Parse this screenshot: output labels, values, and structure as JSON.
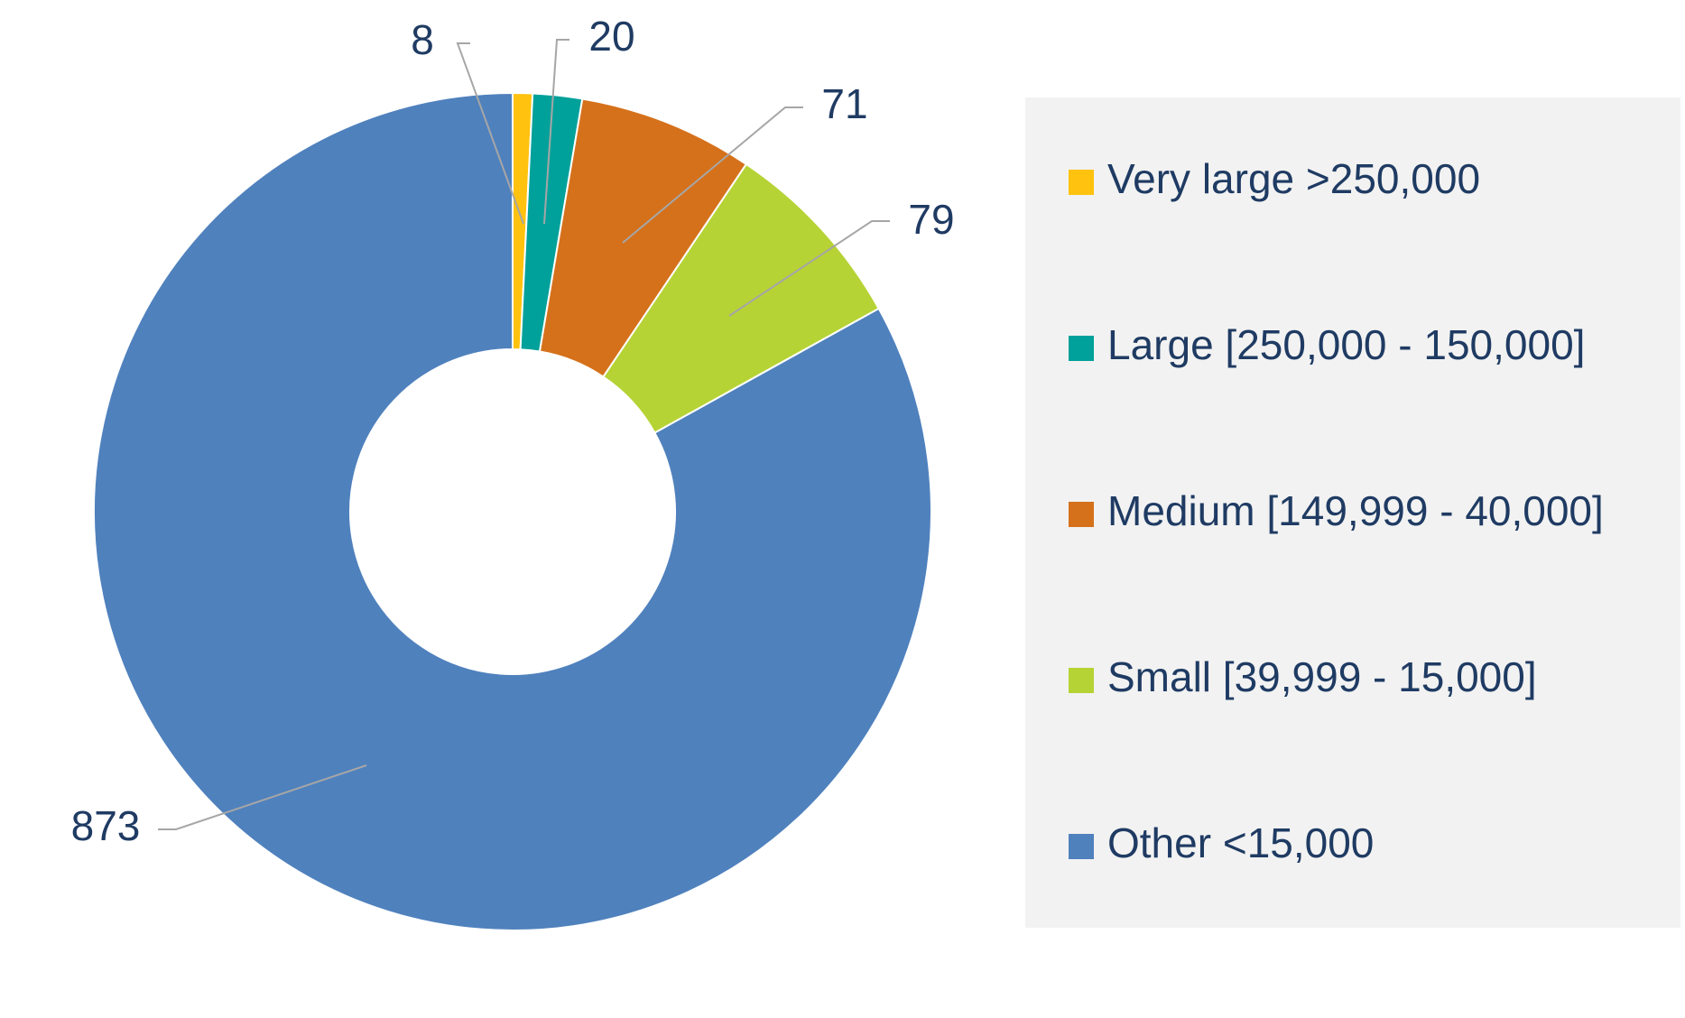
{
  "chart_data": {
    "type": "pie",
    "variant": "donut",
    "categories": [
      "Very large >250,000",
      "Large [250,000 - 150,000]",
      "Medium [149,999 - 40,000]",
      "Small [39,999 - 15,000]",
      "Other <15,000"
    ],
    "values": [
      8,
      20,
      71,
      79,
      873
    ],
    "data_labels": [
      "8",
      "20",
      "71",
      "79",
      "873"
    ],
    "colors": [
      "#FFC20E",
      "#00A19A",
      "#D5711B",
      "#B5D334",
      "#4F81BD"
    ],
    "legend_position": "right",
    "legend_background": "#F2F2F2",
    "label_color": "#1F3B63"
  }
}
